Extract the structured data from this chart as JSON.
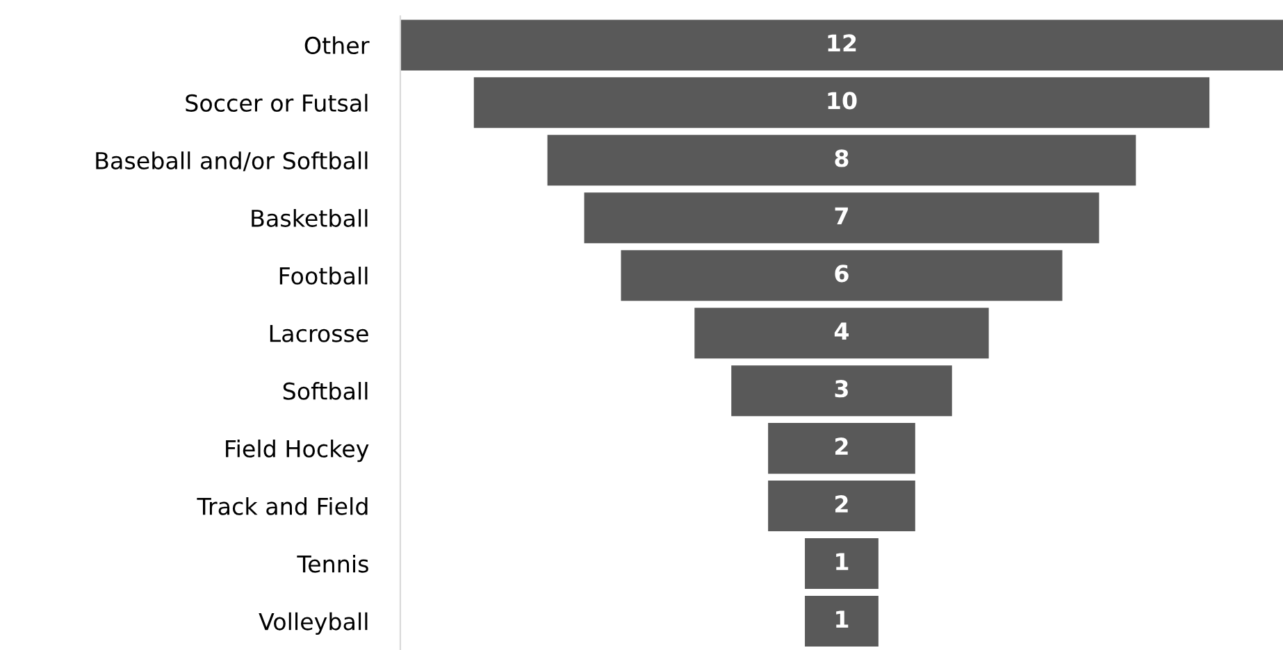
{
  "chart_data": {
    "type": "other",
    "categories": [
      "Other",
      "Soccer or Futsal",
      "Baseball and/or Softball",
      "Basketball",
      "Football",
      "Lacrosse",
      "Softball",
      "Field Hockey",
      "Track and Field",
      "Tennis",
      "Volleyball"
    ],
    "values": [
      12,
      10,
      8,
      7,
      6,
      4,
      3,
      2,
      2,
      1,
      1
    ],
    "color": "#595959",
    "data_labels": true
  }
}
